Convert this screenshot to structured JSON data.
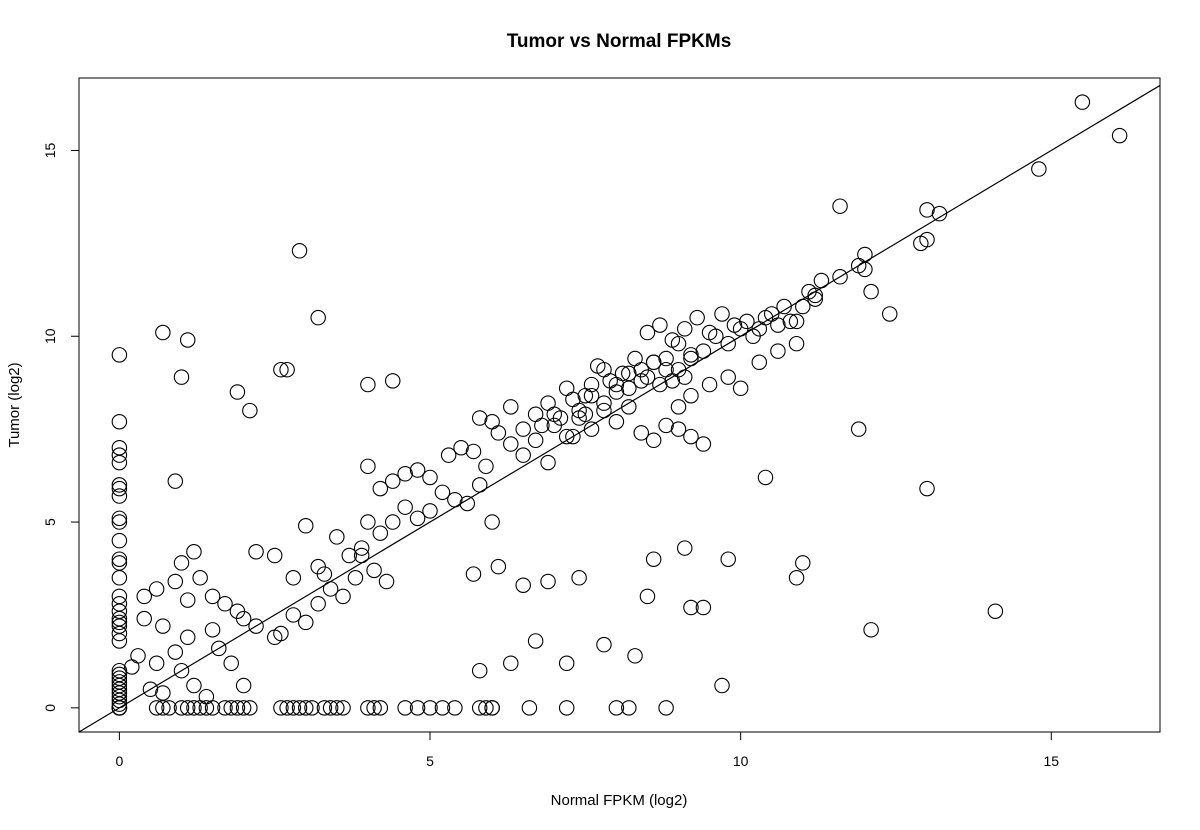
{
  "chart_data": {
    "type": "scatter",
    "title": "Tumor vs Normal FPKMs",
    "xlabel": "Normal FPKM (log2)",
    "ylabel": "Tumor (log2)",
    "xlim": [
      -0.65,
      16.75
    ],
    "ylim": [
      -0.65,
      16.95
    ],
    "xticks": [
      0,
      5,
      10,
      15
    ],
    "yticks": [
      0,
      5,
      10,
      15
    ],
    "grid": false,
    "marker": "open-circle",
    "reference_line": {
      "intercept": 0,
      "slope": 1
    },
    "colors": {
      "marker": "#000000",
      "line": "#000000",
      "background": "#ffffff"
    },
    "x": [
      0,
      0,
      0,
      0,
      0,
      0,
      0,
      0,
      0,
      0,
      0,
      0,
      0,
      0,
      0,
      0,
      0,
      0,
      0,
      0,
      0,
      0,
      0,
      0,
      0,
      0,
      0,
      0,
      0,
      0,
      0,
      0,
      0,
      0,
      0,
      0,
      0.6,
      0.7,
      0.8,
      1.0,
      1.1,
      1.2,
      1.3,
      1.4,
      1.5,
      1.7,
      1.8,
      1.9,
      2.0,
      2.1,
      2.6,
      2.7,
      2.8,
      2.9,
      3.0,
      3.1,
      3.3,
      3.4,
      3.5,
      3.6,
      4.0,
      4.1,
      4.2,
      4.6,
      4.8,
      5.0,
      5.2,
      5.4,
      5.8,
      5.9,
      6.0,
      6.0,
      6.6,
      7.2,
      8.0,
      8.2,
      8.8,
      0.2,
      0.3,
      0.5,
      0.6,
      0.7,
      1.0,
      1.2,
      0.9,
      1.4,
      1.1,
      1.6,
      2.0,
      1.8,
      1.5,
      0.4,
      0.7,
      1.1,
      1.0,
      0.4,
      0.6,
      0.9,
      1.2,
      1.3,
      1.5,
      1.7,
      1.9,
      2.0,
      2.2,
      2.5,
      2.6,
      2.8,
      3.0,
      3.2,
      3.4,
      3.6,
      3.8,
      3.9,
      4.1,
      4.3,
      2.2,
      2.5,
      2.8,
      3.0,
      3.2,
      3.3,
      3.5,
      3.7,
      3.9,
      4.0,
      4.2,
      4.4,
      4.6,
      4.8,
      5.0,
      5.2,
      5.4,
      5.6,
      5.8,
      6.0,
      4.0,
      4.2,
      4.4,
      4.6,
      4.8,
      5.0,
      5.3,
      5.5,
      5.7,
      5.9,
      6.1,
      6.3,
      6.5,
      6.7,
      6.9,
      7.1,
      7.3,
      7.5,
      5.8,
      6.0,
      6.3,
      6.5,
      6.7,
      6.9,
      7.0,
      7.2,
      7.3,
      7.5,
      7.6,
      7.7,
      7.8,
      7.9,
      8.0,
      8.1,
      8.2,
      8.3,
      8.4,
      8.5,
      8.6,
      8.7,
      8.8,
      8.9,
      9.0,
      9.1,
      9.2,
      7.4,
      7.6,
      7.8,
      8.0,
      8.2,
      8.4,
      8.6,
      8.8,
      9.0,
      9.2,
      9.4,
      9.6,
      9.8,
      10.0,
      10.2,
      10.4,
      10.6,
      10.8,
      11.0,
      11.2,
      8.5,
      8.7,
      8.9,
      9.1,
      9.3,
      9.5,
      9.7,
      9.9,
      10.1,
      10.3,
      10.5,
      10.7,
      10.9,
      11.1,
      11.3,
      6.8,
      7.0,
      7.2,
      7.4,
      7.6,
      7.8,
      8.0,
      8.2,
      8.4,
      8.6,
      8.8,
      9.0,
      9.2,
      9.4,
      9.0,
      9.2,
      9.5,
      9.8,
      10.0,
      10.3,
      10.6,
      10.9,
      11.2,
      11.6,
      11.9,
      12.0,
      11.6,
      12.1,
      12.4,
      12.0,
      13.0,
      13.2,
      14.8,
      15.5,
      16.1,
      12.9,
      13.0,
      0.7,
      1.1,
      1.0,
      2.9,
      3.2,
      2.1,
      1.9,
      2.6,
      4.4,
      4.0,
      0.9,
      2.7,
      5.8,
      6.3,
      6.7,
      7.2,
      7.8,
      8.3,
      8.6,
      9.4,
      9.7,
      9.8,
      10.4,
      11.0,
      11.9,
      12.1,
      13.0,
      14.1,
      10.9,
      9.2,
      8.5,
      9.1,
      7.4,
      6.9,
      6.5,
      6.1,
      5.7
    ],
    "y": [
      9.5,
      7.7,
      7.0,
      6.8,
      6.6,
      6.0,
      5.9,
      5.7,
      5.1,
      5.0,
      4.5,
      4.0,
      3.9,
      3.5,
      3.0,
      2.8,
      2.6,
      2.4,
      2.3,
      2.2,
      2.0,
      1.8,
      1.0,
      0.9,
      0.8,
      0.7,
      0.6,
      0.5,
      0.4,
      0.3,
      0.2,
      0.1,
      0,
      0,
      0,
      0,
      0,
      0,
      0,
      0,
      0,
      0,
      0,
      0,
      0,
      0,
      0,
      0,
      0,
      0,
      0,
      0,
      0,
      0,
      0,
      0,
      0,
      0,
      0,
      0,
      0,
      0,
      0,
      0,
      0,
      0,
      0,
      0,
      0,
      0,
      0,
      0,
      0,
      0,
      0,
      0,
      0,
      1.1,
      1.4,
      0.5,
      1.2,
      0.4,
      1.0,
      0.6,
      1.5,
      0.3,
      1.9,
      1.6,
      0.6,
      1.2,
      2.1,
      2.4,
      2.2,
      2.9,
      3.9,
      3.0,
      3.2,
      3.4,
      4.2,
      3.5,
      3.0,
      2.8,
      2.6,
      2.4,
      2.2,
      1.9,
      2.0,
      2.5,
      2.3,
      2.8,
      3.2,
      3.0,
      3.5,
      4.1,
      3.7,
      3.4,
      4.2,
      4.1,
      3.5,
      4.9,
      3.8,
      3.6,
      4.6,
      4.1,
      4.3,
      5.0,
      4.7,
      5.0,
      5.4,
      5.1,
      5.3,
      5.8,
      5.6,
      5.5,
      6.0,
      5.0,
      6.5,
      5.9,
      6.1,
      6.3,
      6.4,
      6.2,
      6.8,
      7.0,
      6.9,
      6.5,
      7.4,
      7.1,
      6.8,
      7.2,
      6.6,
      7.8,
      7.3,
      7.9,
      7.8,
      7.7,
      8.1,
      7.5,
      7.9,
      8.2,
      7.6,
      8.6,
      8.3,
      8.4,
      8.7,
      9.2,
      9.1,
      8.8,
      8.5,
      9.0,
      8.6,
      9.4,
      9.1,
      8.9,
      9.3,
      8.7,
      9.4,
      8.8,
      9.1,
      8.9,
      9.5,
      8.0,
      8.4,
      8.2,
      8.7,
      9.0,
      8.8,
      9.3,
      9.1,
      9.8,
      9.4,
      9.6,
      10.0,
      9.8,
      10.2,
      10.0,
      10.5,
      10.3,
      10.4,
      10.8,
      11.0,
      10.1,
      10.3,
      9.9,
      10.2,
      10.5,
      10.1,
      10.6,
      10.3,
      10.4,
      10.2,
      10.6,
      10.8,
      10.4,
      11.2,
      11.5,
      7.6,
      7.9,
      7.3,
      7.8,
      7.5,
      8.0,
      7.7,
      8.1,
      7.4,
      7.2,
      7.6,
      7.5,
      7.3,
      7.1,
      8.1,
      8.4,
      8.7,
      8.9,
      8.6,
      9.3,
      9.6,
      9.8,
      11.1,
      11.6,
      11.9,
      12.2,
      13.5,
      11.2,
      10.6,
      11.8,
      13.4,
      13.3,
      14.5,
      16.3,
      15.4,
      12.5,
      12.6,
      10.1,
      9.9,
      8.9,
      12.3,
      10.5,
      8.0,
      8.5,
      9.1,
      8.8,
      8.7,
      6.1,
      9.1,
      1.0,
      1.2,
      1.8,
      1.2,
      1.7,
      1.4,
      4.0,
      2.7,
      0.6,
      4.0,
      6.2,
      3.9,
      7.5,
      2.1,
      5.9,
      2.6,
      3.5,
      2.7,
      3.0,
      4.3,
      3.5,
      3.4,
      3.3,
      3.8,
      3.6
    ]
  }
}
